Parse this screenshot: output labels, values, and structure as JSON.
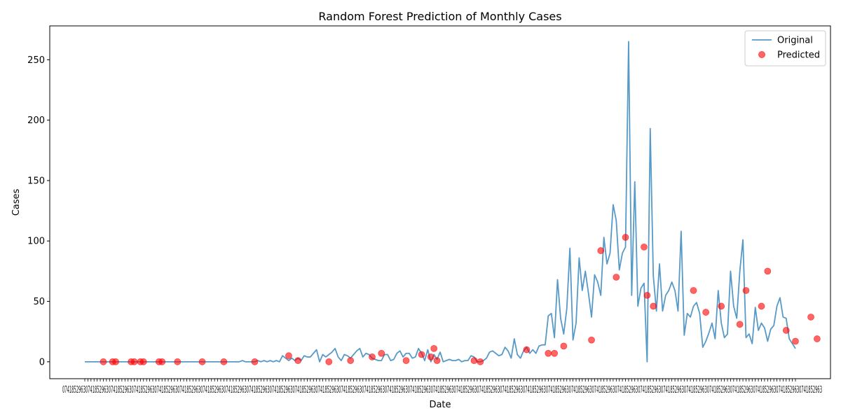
{
  "chart_data": {
    "type": "line",
    "title": "Random Forest Prediction of Monthly Cases",
    "xlabel": "Date",
    "ylabel": "Cases",
    "ylim": [
      -14,
      278
    ],
    "yticks": [
      0,
      50,
      100,
      150,
      200,
      250
    ],
    "legend_position": "top-right",
    "x_tick_labels_note": "x tick labels are dense and overlapping; individual date strings not legible",
    "series": [
      {
        "name": "Original",
        "kind": "line",
        "color": "#1f77b4",
        "values": [
          0,
          0,
          0,
          0,
          0,
          0,
          0,
          0,
          0,
          0,
          0,
          0,
          0,
          0,
          0,
          0,
          0,
          0,
          0,
          0,
          0,
          0,
          0,
          0,
          0,
          0,
          0,
          0,
          0,
          0,
          0,
          0,
          0,
          0,
          0,
          0,
          0,
          0,
          0,
          0,
          0,
          0,
          0,
          0,
          0,
          0,
          0,
          0,
          0,
          0,
          0,
          1,
          0,
          0,
          0,
          0,
          1,
          0,
          1,
          0,
          1,
          0,
          1,
          0,
          5,
          3,
          1,
          3,
          1,
          3,
          1,
          5,
          4,
          4,
          7,
          10,
          0,
          6,
          4,
          6,
          8,
          11,
          4,
          1,
          6,
          5,
          3,
          6,
          9,
          11,
          4,
          7,
          6,
          3,
          2,
          1,
          1,
          6,
          6,
          1,
          2,
          7,
          9,
          4,
          7,
          7,
          3,
          4,
          11,
          7,
          1,
          10,
          0,
          6,
          2,
          8,
          0,
          1,
          2,
          1,
          1,
          2,
          0,
          1,
          1,
          5,
          4,
          0,
          0,
          1,
          3,
          8,
          9,
          7,
          5,
          6,
          12,
          9,
          3,
          19,
          6,
          3,
          9,
          12,
          7,
          10,
          7,
          13,
          14,
          14,
          38,
          40,
          20,
          68,
          36,
          23,
          44,
          94,
          18,
          32,
          86,
          59,
          75,
          57,
          37,
          72,
          66,
          55,
          103,
          81,
          90,
          130,
          117,
          76,
          90,
          95,
          265,
          55,
          149,
          46,
          61,
          65,
          0,
          193,
          71,
          42,
          81,
          42,
          55,
          59,
          66,
          59,
          42,
          108,
          22,
          40,
          37,
          46,
          49,
          40,
          12,
          17,
          24,
          32,
          19,
          59,
          32,
          20,
          23,
          75,
          46,
          36,
          75,
          101,
          20,
          23,
          15,
          45,
          26,
          32,
          28,
          17,
          27,
          30,
          46,
          53,
          37,
          36,
          19,
          15,
          11
        ]
      },
      {
        "name": "Predicted",
        "kind": "scatter",
        "color": "#ff0000",
        "points": [
          [
            6,
            0
          ],
          [
            9,
            0
          ],
          [
            10,
            0
          ],
          [
            15,
            0
          ],
          [
            16,
            0
          ],
          [
            18,
            0
          ],
          [
            19,
            0
          ],
          [
            24,
            0
          ],
          [
            25,
            0
          ],
          [
            30,
            0
          ],
          [
            38,
            0
          ],
          [
            45,
            0
          ],
          [
            55,
            0
          ],
          [
            66,
            5
          ],
          [
            69,
            1
          ],
          [
            79,
            0
          ],
          [
            86,
            1
          ],
          [
            93,
            4
          ],
          [
            96,
            7
          ],
          [
            104,
            1
          ],
          [
            109,
            6
          ],
          [
            112,
            4
          ],
          [
            113,
            11
          ],
          [
            114,
            1
          ],
          [
            126,
            1
          ],
          [
            128,
            0
          ],
          [
            143,
            10
          ],
          [
            150,
            7
          ],
          [
            152,
            7
          ],
          [
            155,
            13
          ],
          [
            164,
            18
          ],
          [
            167,
            92
          ],
          [
            172,
            70
          ],
          [
            175,
            103
          ],
          [
            181,
            95
          ],
          [
            182,
            55
          ],
          [
            184,
            46
          ],
          [
            197,
            59
          ],
          [
            201,
            41
          ],
          [
            206,
            46
          ],
          [
            212,
            31
          ],
          [
            214,
            59
          ],
          [
            219,
            46
          ],
          [
            221,
            75
          ],
          [
            227,
            26
          ],
          [
            230,
            17
          ],
          [
            235,
            37
          ],
          [
            237,
            19
          ]
        ]
      }
    ]
  }
}
